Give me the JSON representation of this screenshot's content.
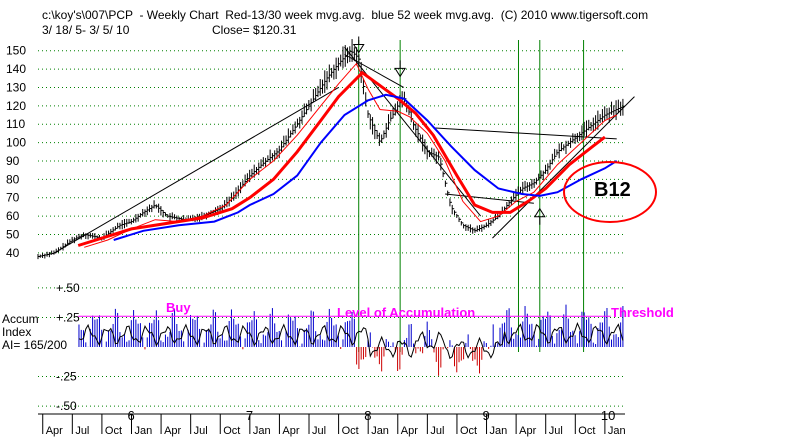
{
  "header": {
    "line1": "c:\\koy's\\007\\PCP  - Weekly Chart  Red-13/30 week mvg.avg.  blue 52 week mvg.avg.  (C) 2010 www.tigersoft.com",
    "line2_range": "3/ 18/ 5- 3/ 5/ 10",
    "line2_close": "Close= $120.31"
  },
  "indicator": {
    "name_line1": "Accum",
    "name_line2": "Index",
    "name_line3": "AI= 165/200",
    "ylim": [
      -0.55,
      0.55
    ],
    "ticks": [
      {
        "v": 0.5,
        "label": "+.50"
      },
      {
        "v": 0.25,
        "label": "+.25"
      },
      {
        "v": -0.25,
        "label": "-.25"
      },
      {
        "v": -0.5,
        "label": "-.50"
      }
    ],
    "threshold_value": 0.26
  },
  "annotations": {
    "buy": "Buy",
    "level": "Level of Accumulation",
    "threshold": "Threshold",
    "signal": "B12"
  },
  "colors": {
    "price_bars": "#000000",
    "ma_red": "#ff0000",
    "ma_blue": "#0000ff",
    "signal_lines": "#008000",
    "grid": "#008000",
    "annotation": "#ff00ff",
    "ai_pos": "#0000cc",
    "ai_neg": "#cc0000",
    "circle": "#ff0000"
  },
  "chart_data": {
    "type": "line",
    "title": "PCP - Weekly Chart",
    "xlabel": "",
    "ylabel": "",
    "ylim": [
      35,
      158
    ],
    "y_ticks": [
      40,
      50,
      60,
      70,
      80,
      90,
      100,
      110,
      120,
      130,
      140,
      150
    ],
    "x_range": [
      2005.21,
      2010.17
    ],
    "year_ticks": [
      {
        "x": 2006.0,
        "label": "6"
      },
      {
        "x": 2007.0,
        "label": "7"
      },
      {
        "x": 2008.0,
        "label": "8"
      },
      {
        "x": 2009.0,
        "label": "9"
      },
      {
        "x": 2010.0,
        "label": "10"
      }
    ],
    "month_ticks": [
      {
        "x": 2005.25,
        "label": "Apr"
      },
      {
        "x": 2005.5,
        "label": "Jul"
      },
      {
        "x": 2005.75,
        "label": "Oct"
      },
      {
        "x": 2006.0,
        "label": "Jan"
      },
      {
        "x": 2006.25,
        "label": "Apr"
      },
      {
        "x": 2006.5,
        "label": "Jul"
      },
      {
        "x": 2006.75,
        "label": "Oct"
      },
      {
        "x": 2007.0,
        "label": "Jan"
      },
      {
        "x": 2007.25,
        "label": "Apr"
      },
      {
        "x": 2007.5,
        "label": "Jul"
      },
      {
        "x": 2007.75,
        "label": "Oct"
      },
      {
        "x": 2008.0,
        "label": "Jan"
      },
      {
        "x": 2008.25,
        "label": "Apr"
      },
      {
        "x": 2008.5,
        "label": "Jul"
      },
      {
        "x": 2008.75,
        "label": "Oct"
      },
      {
        "x": 2009.0,
        "label": "Jan"
      },
      {
        "x": 2009.25,
        "label": "Apr"
      },
      {
        "x": 2009.5,
        "label": "Jul"
      },
      {
        "x": 2009.75,
        "label": "Oct"
      },
      {
        "x": 2010.0,
        "label": "Jan"
      }
    ],
    "price_close": [
      [
        2005.21,
        38
      ],
      [
        2005.35,
        40
      ],
      [
        2005.5,
        47
      ],
      [
        2005.6,
        50
      ],
      [
        2005.75,
        48
      ],
      [
        2005.9,
        55
      ],
      [
        2006.0,
        57
      ],
      [
        2006.1,
        62
      ],
      [
        2006.2,
        66
      ],
      [
        2006.3,
        60
      ],
      [
        2006.45,
        58
      ],
      [
        2006.6,
        60
      ],
      [
        2006.75,
        64
      ],
      [
        2006.85,
        70
      ],
      [
        2007.0,
        82
      ],
      [
        2007.1,
        88
      ],
      [
        2007.25,
        96
      ],
      [
        2007.4,
        110
      ],
      [
        2007.55,
        125
      ],
      [
        2007.65,
        135
      ],
      [
        2007.75,
        143
      ],
      [
        2007.85,
        150
      ],
      [
        2007.92,
        146
      ],
      [
        2008.0,
        115
      ],
      [
        2008.1,
        100
      ],
      [
        2008.18,
        112
      ],
      [
        2008.25,
        120
      ],
      [
        2008.3,
        125
      ],
      [
        2008.38,
        110
      ],
      [
        2008.5,
        95
      ],
      [
        2008.6,
        92
      ],
      [
        2008.7,
        65
      ],
      [
        2008.8,
        55
      ],
      [
        2008.9,
        52
      ],
      [
        2009.0,
        55
      ],
      [
        2009.1,
        60
      ],
      [
        2009.2,
        68
      ],
      [
        2009.3,
        75
      ],
      [
        2009.4,
        78
      ],
      [
        2009.5,
        85
      ],
      [
        2009.6,
        95
      ],
      [
        2009.7,
        100
      ],
      [
        2009.8,
        105
      ],
      [
        2009.9,
        110
      ],
      [
        2010.0,
        115
      ],
      [
        2010.17,
        120.31
      ]
    ],
    "series": [
      {
        "name": "13-week mvg.avg",
        "color": "#ff0000",
        "width": 1,
        "points": [
          [
            2005.6,
            43
          ],
          [
            2005.8,
            47
          ],
          [
            2006.0,
            53
          ],
          [
            2006.2,
            58
          ],
          [
            2006.4,
            57
          ],
          [
            2006.6,
            60
          ],
          [
            2006.8,
            66
          ],
          [
            2007.0,
            80
          ],
          [
            2007.2,
            90
          ],
          [
            2007.4,
            104
          ],
          [
            2007.6,
            120
          ],
          [
            2007.75,
            132
          ],
          [
            2007.9,
            143
          ],
          [
            2008.0,
            129
          ],
          [
            2008.1,
            118
          ],
          [
            2008.25,
            117
          ],
          [
            2008.35,
            114
          ],
          [
            2008.5,
            105
          ],
          [
            2008.65,
            90
          ],
          [
            2008.8,
            68
          ],
          [
            2008.95,
            57
          ],
          [
            2009.1,
            60
          ],
          [
            2009.25,
            68
          ],
          [
            2009.4,
            73
          ],
          [
            2009.6,
            88
          ],
          [
            2009.8,
            100
          ],
          [
            2010.0,
            112
          ],
          [
            2010.1,
            115
          ]
        ]
      },
      {
        "name": "30-week mvg.avg",
        "color": "#ff0000",
        "width": 3,
        "points": [
          [
            2005.55,
            44
          ],
          [
            2005.8,
            49
          ],
          [
            2006.0,
            53
          ],
          [
            2006.3,
            56
          ],
          [
            2006.6,
            59
          ],
          [
            2006.85,
            64
          ],
          [
            2007.0,
            70
          ],
          [
            2007.2,
            80
          ],
          [
            2007.4,
            95
          ],
          [
            2007.6,
            112
          ],
          [
            2007.75,
            125
          ],
          [
            2007.95,
            138
          ],
          [
            2008.1,
            131
          ],
          [
            2008.25,
            124
          ],
          [
            2008.4,
            116
          ],
          [
            2008.55,
            104
          ],
          [
            2008.75,
            82
          ],
          [
            2008.9,
            66
          ],
          [
            2009.05,
            62
          ],
          [
            2009.2,
            62
          ],
          [
            2009.35,
            68
          ],
          [
            2009.5,
            75
          ],
          [
            2009.7,
            88
          ],
          [
            2009.9,
            98
          ],
          [
            2010.0,
            103
          ]
        ]
      },
      {
        "name": "52-week mvg.avg",
        "color": "#0000ff",
        "width": 2,
        "points": [
          [
            2005.85,
            47
          ],
          [
            2006.1,
            52
          ],
          [
            2006.4,
            55
          ],
          [
            2006.7,
            57
          ],
          [
            2006.9,
            62
          ],
          [
            2007.0,
            66
          ],
          [
            2007.2,
            72
          ],
          [
            2007.4,
            82
          ],
          [
            2007.6,
            100
          ],
          [
            2007.8,
            115
          ],
          [
            2008.0,
            123
          ],
          [
            2008.15,
            126
          ],
          [
            2008.3,
            124
          ],
          [
            2008.5,
            112
          ],
          [
            2008.7,
            98
          ],
          [
            2008.9,
            85
          ],
          [
            2009.1,
            75
          ],
          [
            2009.3,
            72
          ],
          [
            2009.45,
            71
          ],
          [
            2009.6,
            73
          ],
          [
            2009.8,
            80
          ],
          [
            2010.0,
            86
          ],
          [
            2010.1,
            90
          ]
        ]
      }
    ],
    "trendlines": [
      [
        [
          2005.35,
          40
        ],
        [
          2007.75,
          130
        ]
      ],
      [
        [
          2007.8,
          152
        ],
        [
          2008.95,
          60
        ]
      ],
      [
        [
          2008.55,
          108
        ],
        [
          2010.1,
          102
        ]
      ],
      [
        [
          2008.65,
          72
        ],
        [
          2009.4,
          67
        ]
      ],
      [
        [
          2009.05,
          48
        ],
        [
          2010.25,
          125
        ]
      ],
      [
        [
          2007.8,
          148
        ],
        [
          2008.3,
          130
        ]
      ]
    ],
    "signal_lines_x": [
      2007.92,
      2008.27,
      2009.27,
      2009.45,
      2009.82
    ],
    "arrows": [
      {
        "x": 2007.92,
        "y": 149,
        "dir": "down"
      },
      {
        "x": 2008.27,
        "y": 136,
        "dir": "down"
      },
      {
        "x": 2009.45,
        "y": 64,
        "dir": "up"
      }
    ]
  }
}
